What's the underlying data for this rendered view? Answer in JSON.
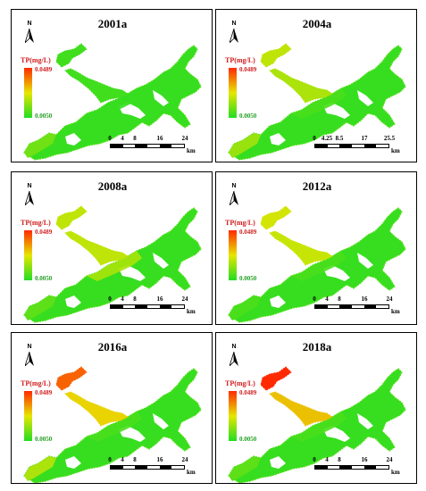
{
  "colors": {
    "low": "#22dd22",
    "high": "#ff2a00",
    "mid": "#e6e600"
  },
  "legend": {
    "title": "TP(mg/L)",
    "max": "0.0489",
    "min": "0.0050"
  },
  "north_label": "N",
  "scale_unit": "km",
  "panels": [
    {
      "title": "2001a",
      "scale_ticks": [
        "0",
        "4",
        "8",
        "16",
        "24"
      ],
      "upper_arm_level": 0.08,
      "tip_level": 0.08,
      "southwest_level": 0.2,
      "center_level": 0.05
    },
    {
      "title": "2004a",
      "scale_ticks": [
        "0",
        "4.25",
        "8.5",
        "17",
        "25.5"
      ],
      "upper_arm_level": 0.35,
      "tip_level": 0.4,
      "southwest_level": 0.3,
      "center_level": 0.1
    },
    {
      "title": "2008a",
      "scale_ticks": [
        "0",
        "4",
        "8",
        "16",
        "24"
      ],
      "upper_arm_level": 0.4,
      "tip_level": 0.4,
      "southwest_level": 0.15,
      "center_level": 0.35
    },
    {
      "title": "2012a",
      "scale_ticks": [
        "0",
        "4",
        "8",
        "16",
        "24"
      ],
      "upper_arm_level": 0.42,
      "tip_level": 0.45,
      "southwest_level": 0.1,
      "center_level": 0.1
    },
    {
      "title": "2016a",
      "scale_ticks": [
        "0",
        "4",
        "8",
        "16",
        "24"
      ],
      "upper_arm_level": 0.55,
      "tip_level": 0.85,
      "southwest_level": 0.35,
      "center_level": 0.1
    },
    {
      "title": "2018a",
      "scale_ticks": [
        "0",
        "4",
        "8",
        "16",
        "24"
      ],
      "upper_arm_level": 0.6,
      "tip_level": 1.0,
      "southwest_level": 0.15,
      "center_level": 0.1
    }
  ]
}
